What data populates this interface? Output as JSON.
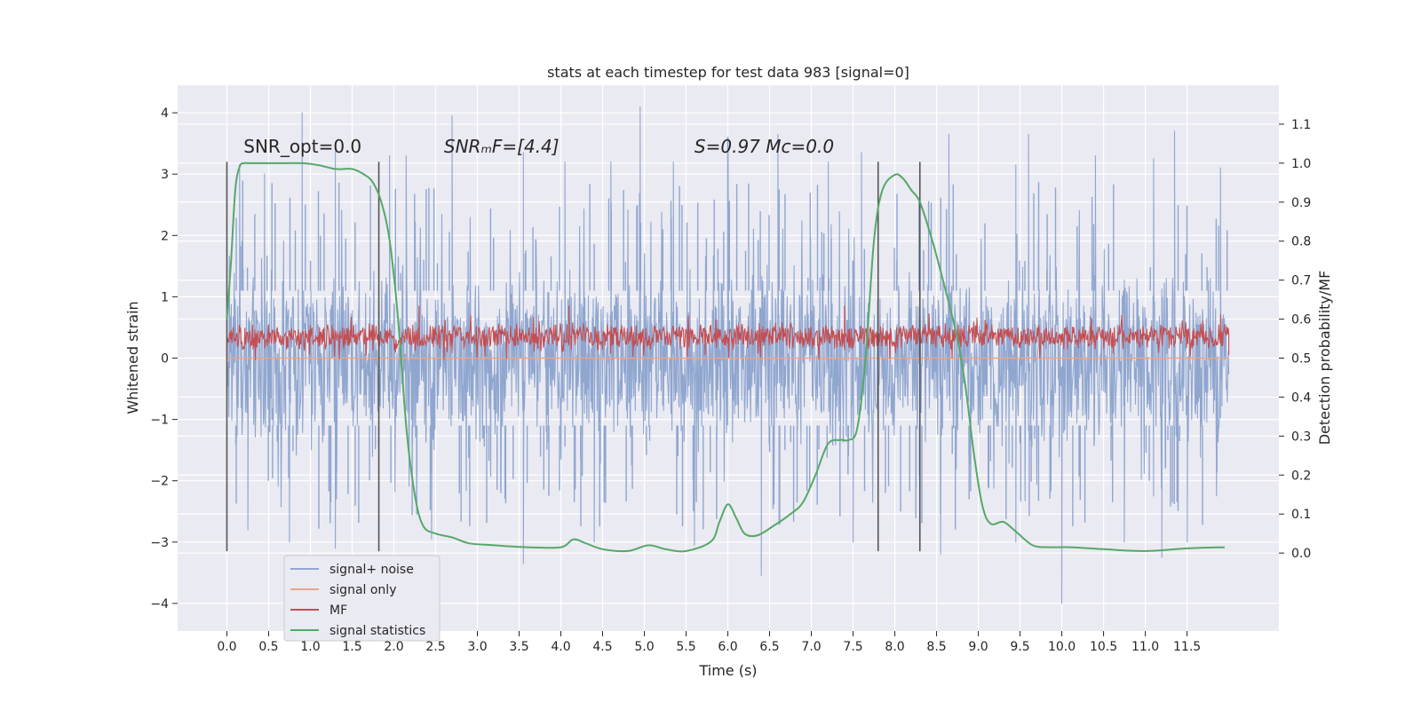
{
  "chart_data": {
    "type": "line",
    "title": "stats at each timestep for test data 983 [signal=0]",
    "xlabel": "Time (s)",
    "ylabel": "Whitened strain",
    "ylabel_right": "Detection probability/MF",
    "xlim": [
      -0.59,
      12.6
    ],
    "ylim": [
      -4.45,
      4.45
    ],
    "ylim_right": [
      -0.2,
      1.2
    ],
    "x_ticks": [
      0.0,
      0.5,
      1.0,
      1.5,
      2.0,
      2.5,
      3.0,
      3.5,
      4.0,
      4.5,
      5.0,
      5.5,
      6.0,
      6.5,
      7.0,
      7.5,
      8.0,
      8.5,
      9.0,
      9.5,
      10.0,
      10.5,
      11.0,
      11.5
    ],
    "x_tick_labels": [
      "0.0",
      "0.5",
      "1.0",
      "1.5",
      "2.0",
      "2.5",
      "3.0",
      "3.5",
      "4.0",
      "4.5",
      "5.0",
      "5.5",
      "6.0",
      "6.5",
      "7.0",
      "7.5",
      "8.0",
      "8.5",
      "9.0",
      "9.5",
      "10.0",
      "10.5",
      "11.0",
      "11.5"
    ],
    "y_ticks": [
      -4,
      -3,
      -2,
      -1,
      0,
      1,
      2,
      3,
      4
    ],
    "y_tick_labels": [
      "−4",
      "−3",
      "−2",
      "−1",
      "0",
      "1",
      "2",
      "3",
      "4"
    ],
    "y_ticks_right": [
      0.0,
      0.1,
      0.2,
      0.3,
      0.4,
      0.5,
      0.6,
      0.7,
      0.8,
      0.9,
      1.0,
      1.1
    ],
    "y_tick_labels_right": [
      "0.0",
      "0.1",
      "0.2",
      "0.3",
      "0.4",
      "0.5",
      "0.6",
      "0.7",
      "0.8",
      "0.9",
      "1.0",
      "1.1"
    ],
    "grid": true,
    "legend_position": "lower-left",
    "colors": {
      "background": "#eaeaf2",
      "grid": "#ffffff",
      "noise": "#8fa6cf",
      "signal": "#e8a58c",
      "mf": "#c44e52",
      "stats": "#55a868",
      "markers": "#555555"
    },
    "legend": [
      {
        "name": "signal+ noise",
        "color": "#8fa6cf"
      },
      {
        "name": "signal only",
        "color": "#e8a58c"
      },
      {
        "name": "MF",
        "color": "#c44e52"
      },
      {
        "name": "signal statistics",
        "color": "#55a868"
      }
    ],
    "annotations": [
      {
        "text": "SNR_opt=0.0",
        "x": 0.2,
        "y": 3.35
      },
      {
        "text": "SNRₘF=[4.4]",
        "x": 2.6,
        "y": 3.35
      },
      {
        "text": "S=0.97   Mᴄ=0.0",
        "x": 5.6,
        "y": 3.35
      }
    ],
    "vertical_markers": [
      {
        "x": 0.0,
        "ymin": -3.15,
        "ymax": 3.2
      },
      {
        "x": 1.82,
        "ymin": -3.15,
        "ymax": 3.2
      },
      {
        "x": 7.8,
        "ymin": -3.15,
        "ymax": 3.2
      },
      {
        "x": 8.3,
        "ymin": -3.15,
        "ymax": 3.2
      }
    ],
    "series": [
      {
        "name": "signal+ noise",
        "style": "noise-band",
        "x_range": [
          0.0,
          12.0
        ],
        "typical_range": [
          -1.3,
          1.3
        ],
        "peaks_top": [
          [
            0.15,
            3.15
          ],
          [
            0.45,
            3.0
          ],
          [
            0.9,
            4.0
          ],
          [
            1.3,
            3.4
          ],
          [
            1.95,
            3.3
          ],
          [
            2.15,
            3.3
          ],
          [
            2.7,
            3.95
          ],
          [
            3.55,
            3.35
          ],
          [
            4.05,
            3.2
          ],
          [
            4.6,
            3.2
          ],
          [
            4.95,
            4.1
          ],
          [
            5.35,
            3.2
          ],
          [
            6.0,
            3.6
          ],
          [
            6.6,
            3.65
          ],
          [
            7.2,
            3.2
          ],
          [
            7.6,
            3.35
          ],
          [
            8.65,
            3.65
          ],
          [
            9.45,
            3.15
          ],
          [
            9.6,
            3.65
          ],
          [
            10.4,
            3.3
          ],
          [
            11.1,
            3.25
          ],
          [
            11.35,
            3.7
          ],
          [
            11.9,
            3.1
          ]
        ],
        "peaks_bottom": [
          [
            0.25,
            -2.8
          ],
          [
            0.75,
            -3.0
          ],
          [
            1.3,
            -3.1
          ],
          [
            2.45,
            -2.95
          ],
          [
            3.55,
            -3.35
          ],
          [
            4.4,
            -3.0
          ],
          [
            5.6,
            -3.05
          ],
          [
            6.4,
            -3.55
          ],
          [
            7.5,
            -3.0
          ],
          [
            8.55,
            -3.2
          ],
          [
            9.45,
            -3.0
          ],
          [
            10.0,
            -4.0
          ],
          [
            10.75,
            -3.0
          ],
          [
            11.2,
            -3.25
          ],
          [
            11.5,
            -3.0
          ]
        ]
      },
      {
        "name": "signal only",
        "style": "line",
        "x": [
          0.0,
          12.0
        ],
        "y": [
          0.0,
          0.0
        ]
      },
      {
        "name": "MF",
        "style": "noise-band",
        "x_range": [
          0.0,
          12.0
        ],
        "typical_range": [
          0.15,
          0.55
        ],
        "peaks_top": [
          [
            0.0,
            0.8
          ],
          [
            2.3,
            0.85
          ],
          [
            4.1,
            0.85
          ],
          [
            7.4,
            0.85
          ],
          [
            11.9,
            0.7
          ]
        ],
        "peaks_bottom": [
          [
            0.0,
            0.0
          ],
          [
            6.0,
            0.05
          ],
          [
            12.0,
            0.05
          ]
        ]
      },
      {
        "name": "signal statistics",
        "axis": "right",
        "style": "line",
        "x": [
          0.0,
          0.05,
          0.1,
          0.15,
          0.2,
          0.25,
          0.3,
          0.4,
          0.6,
          0.9,
          1.1,
          1.3,
          1.5,
          1.65,
          1.75,
          1.85,
          1.95,
          2.05,
          2.15,
          2.25,
          2.35,
          2.5,
          2.7,
          2.9,
          3.2,
          3.6,
          4.0,
          4.15,
          4.3,
          4.5,
          4.8,
          5.05,
          5.25,
          5.5,
          5.8,
          5.9,
          6.0,
          6.1,
          6.2,
          6.35,
          6.55,
          6.75,
          6.9,
          7.05,
          7.2,
          7.35,
          7.45,
          7.55,
          7.65,
          7.75,
          7.85,
          8.0,
          8.1,
          8.2,
          8.3,
          8.45,
          8.6,
          8.75,
          8.85,
          8.95,
          9.05,
          9.15,
          9.3,
          9.45,
          9.65,
          9.85,
          10.1,
          10.5,
          11.0,
          11.5,
          11.95
        ],
        "y": [
          0.6,
          0.75,
          0.93,
          0.99,
          1.0,
          1.0,
          1.0,
          1.0,
          1.0,
          1.0,
          0.995,
          0.985,
          0.985,
          0.97,
          0.95,
          0.9,
          0.8,
          0.6,
          0.32,
          0.15,
          0.07,
          0.05,
          0.04,
          0.025,
          0.02,
          0.015,
          0.015,
          0.035,
          0.025,
          0.01,
          0.005,
          0.02,
          0.01,
          0.005,
          0.03,
          0.08,
          0.125,
          0.09,
          0.05,
          0.045,
          0.07,
          0.1,
          0.13,
          0.2,
          0.28,
          0.29,
          0.29,
          0.32,
          0.5,
          0.8,
          0.93,
          0.97,
          0.96,
          0.93,
          0.9,
          0.8,
          0.68,
          0.55,
          0.42,
          0.25,
          0.12,
          0.075,
          0.08,
          0.055,
          0.02,
          0.015,
          0.015,
          0.01,
          0.005,
          0.012,
          0.015
        ]
      }
    ]
  }
}
